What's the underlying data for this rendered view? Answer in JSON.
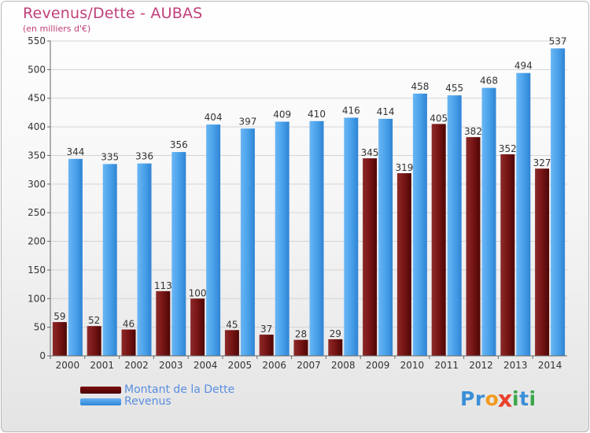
{
  "title": "Revenus/Dette - AUBAS",
  "subtitle": "(en milliers d'€)",
  "legend": {
    "dette_label": "Montant de la Dette",
    "revenus_label": "Revenus"
  },
  "logo": {
    "text": "Proxiti",
    "letters": [
      {
        "ch": "P",
        "color": "#3a8fd8"
      },
      {
        "ch": "r",
        "color": "#3a8fd8"
      },
      {
        "ch": "o",
        "color": "#f39a1c"
      },
      {
        "ch": "x",
        "color": "#e8412c"
      },
      {
        "ch": "i",
        "color": "#3aa64a"
      },
      {
        "ch": "t",
        "color": "#3a8fd8"
      },
      {
        "ch": "i",
        "color": "#3aa64a"
      }
    ]
  },
  "colors": {
    "dette": "#6b0a0a",
    "revenus": "#3d98e6",
    "title": "#c0407a",
    "legend_text": "#5a8ee0"
  },
  "chart_data": {
    "type": "bar",
    "categories": [
      "2000",
      "2001",
      "2002",
      "2003",
      "2004",
      "2005",
      "2006",
      "2007",
      "2008",
      "2009",
      "2010",
      "2011",
      "2012",
      "2013",
      "2014"
    ],
    "series": [
      {
        "name": "Montant de la Dette",
        "values": [
          59,
          52,
          46,
          113,
          100,
          45,
          37,
          28,
          29,
          345,
          319,
          405,
          382,
          352,
          327
        ]
      },
      {
        "name": "Revenus",
        "values": [
          344,
          335,
          336,
          356,
          404,
          397,
          409,
          410,
          416,
          414,
          458,
          455,
          468,
          494,
          537
        ]
      }
    ],
    "ylim": [
      0,
      550
    ],
    "yticks": [
      0,
      50,
      100,
      150,
      200,
      250,
      300,
      350,
      400,
      450,
      500,
      550
    ],
    "grid": true
  }
}
